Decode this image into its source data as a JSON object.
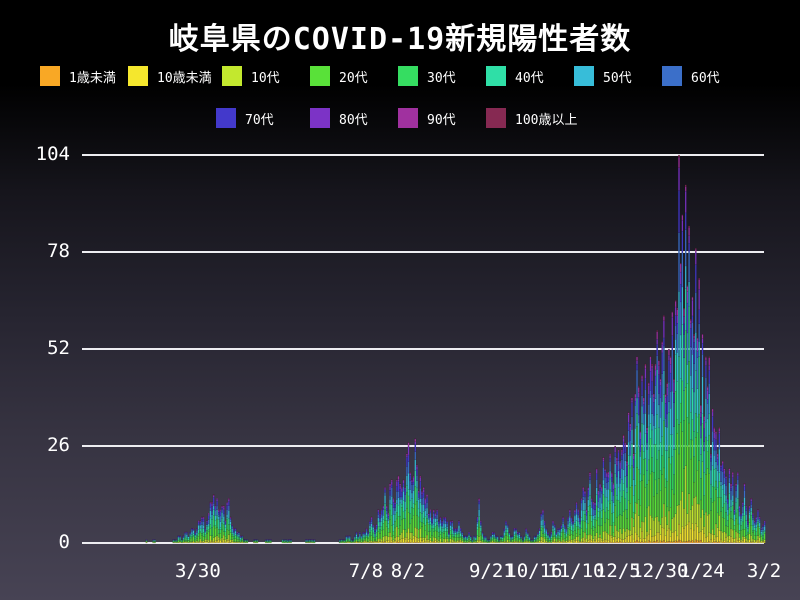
{
  "page": {
    "title": "岐阜県のCOVID-19新規陽性者数"
  },
  "colors": {
    "background_top": "#000000",
    "background_bottom": "#474354",
    "grid": "#ededf1",
    "text": "#ffffff"
  },
  "chart_data": {
    "type": "bar",
    "stacked": true,
    "title": "岐阜県のCOVID-19新規陽性者数",
    "xlabel": "",
    "ylabel": "",
    "ylim": [
      0,
      104
    ],
    "yticks": [
      104,
      78,
      52,
      26,
      0
    ],
    "grid": "horizontal",
    "legend_position": "top",
    "series": [
      {
        "name": "1歳未満",
        "color": "#f9a825"
      },
      {
        "name": "10歳未満",
        "color": "#f5e72d"
      },
      {
        "name": "10代",
        "color": "#c3e82e"
      },
      {
        "name": "20代",
        "color": "#59e139"
      },
      {
        "name": "30代",
        "color": "#35dd61"
      },
      {
        "name": "40代",
        "color": "#2fdfa7"
      },
      {
        "name": "50代",
        "color": "#37bdd9"
      },
      {
        "name": "60代",
        "color": "#3b6fc9"
      },
      {
        "name": "70代",
        "color": "#4339cb"
      },
      {
        "name": "80代",
        "color": "#7c33c6"
      },
      {
        "name": "90代",
        "color": "#a0319f"
      },
      {
        "name": "100歳以上",
        "color": "#862952"
      }
    ],
    "stack_fractions": [
      0.008,
      0.045,
      0.09,
      0.19,
      0.155,
      0.13,
      0.125,
      0.1,
      0.075,
      0.045,
      0.022,
      0.005
    ],
    "x_axis": {
      "unit": "days (daily bars)",
      "range": [
        0,
        406
      ],
      "ticks": [
        {
          "label": "3/30",
          "day": 69
        },
        {
          "label": "7/8",
          "day": 169
        },
        {
          "label": "8/2",
          "day": 194
        },
        {
          "label": "9/21",
          "day": 244
        },
        {
          "label": "10/16",
          "day": 269
        },
        {
          "label": "11/10",
          "day": 294
        },
        {
          "label": "12/5",
          "day": 319
        },
        {
          "label": "12/30",
          "day": 344
        },
        {
          "label": "1/24",
          "day": 369
        },
        {
          "label": "3/2",
          "day": 406
        }
      ]
    },
    "daily_totals_keyframes": [
      [
        0,
        0
      ],
      [
        37,
        0
      ],
      [
        38,
        1
      ],
      [
        39,
        0
      ],
      [
        43,
        1
      ],
      [
        44,
        0
      ],
      [
        52,
        0
      ],
      [
        55,
        1
      ],
      [
        57,
        2
      ],
      [
        59,
        1
      ],
      [
        61,
        3
      ],
      [
        63,
        2
      ],
      [
        65,
        4
      ],
      [
        67,
        3
      ],
      [
        69,
        5
      ],
      [
        71,
        7
      ],
      [
        73,
        5
      ],
      [
        75,
        8
      ],
      [
        77,
        10
      ],
      [
        79,
        13
      ],
      [
        81,
        9
      ],
      [
        83,
        12
      ],
      [
        85,
        8
      ],
      [
        87,
        10
      ],
      [
        88,
        6
      ],
      [
        90,
        4
      ],
      [
        92,
        3
      ],
      [
        94,
        2
      ],
      [
        96,
        1
      ],
      [
        98,
        1
      ],
      [
        100,
        0
      ],
      [
        104,
        1
      ],
      [
        105,
        0
      ],
      [
        112,
        1
      ],
      [
        113,
        0
      ],
      [
        124,
        1
      ],
      [
        125,
        0
      ],
      [
        138,
        1
      ],
      [
        139,
        0
      ],
      [
        150,
        0
      ],
      [
        155,
        1
      ],
      [
        158,
        2
      ],
      [
        160,
        1
      ],
      [
        163,
        3
      ],
      [
        166,
        2
      ],
      [
        168,
        4
      ],
      [
        170,
        3
      ],
      [
        172,
        6
      ],
      [
        174,
        5
      ],
      [
        176,
        8
      ],
      [
        178,
        7
      ],
      [
        180,
        12
      ],
      [
        182,
        9
      ],
      [
        184,
        16
      ],
      [
        186,
        12
      ],
      [
        188,
        20
      ],
      [
        190,
        15
      ],
      [
        192,
        18
      ],
      [
        194,
        24
      ],
      [
        196,
        20
      ],
      [
        198,
        23
      ],
      [
        200,
        16
      ],
      [
        202,
        12
      ],
      [
        204,
        14
      ],
      [
        206,
        10
      ],
      [
        208,
        8
      ],
      [
        210,
        10
      ],
      [
        212,
        7
      ],
      [
        214,
        5
      ],
      [
        216,
        7
      ],
      [
        218,
        4
      ],
      [
        220,
        6
      ],
      [
        222,
        3
      ],
      [
        224,
        5
      ],
      [
        226,
        3
      ],
      [
        228,
        2
      ],
      [
        230,
        3
      ],
      [
        232,
        1
      ],
      [
        234,
        2
      ],
      [
        236,
        10
      ],
      [
        237,
        5
      ],
      [
        238,
        3
      ],
      [
        240,
        2
      ],
      [
        242,
        1
      ],
      [
        244,
        3
      ],
      [
        246,
        2
      ],
      [
        248,
        1
      ],
      [
        250,
        2
      ],
      [
        252,
        5
      ],
      [
        254,
        3
      ],
      [
        256,
        2
      ],
      [
        258,
        4
      ],
      [
        260,
        2
      ],
      [
        262,
        1
      ],
      [
        264,
        3
      ],
      [
        266,
        2
      ],
      [
        268,
        1
      ],
      [
        270,
        2
      ],
      [
        272,
        4
      ],
      [
        274,
        9
      ],
      [
        275,
        5
      ],
      [
        276,
        3
      ],
      [
        278,
        2
      ],
      [
        280,
        5
      ],
      [
        282,
        3
      ],
      [
        284,
        4
      ],
      [
        286,
        6
      ],
      [
        288,
        4
      ],
      [
        290,
        8
      ],
      [
        292,
        5
      ],
      [
        294,
        10
      ],
      [
        296,
        7
      ],
      [
        298,
        13
      ],
      [
        300,
        9
      ],
      [
        302,
        15
      ],
      [
        304,
        11
      ],
      [
        306,
        17
      ],
      [
        308,
        13
      ],
      [
        310,
        21
      ],
      [
        312,
        15
      ],
      [
        314,
        24
      ],
      [
        316,
        18
      ],
      [
        318,
        27
      ],
      [
        320,
        20
      ],
      [
        322,
        31
      ],
      [
        324,
        23
      ],
      [
        326,
        35
      ],
      [
        328,
        26
      ],
      [
        330,
        41
      ],
      [
        332,
        30
      ],
      [
        334,
        45
      ],
      [
        336,
        33
      ],
      [
        338,
        51
      ],
      [
        340,
        37
      ],
      [
        342,
        47
      ],
      [
        344,
        40
      ],
      [
        346,
        55
      ],
      [
        348,
        44
      ],
      [
        350,
        60
      ],
      [
        352,
        50
      ],
      [
        354,
        72
      ],
      [
        355,
        104
      ],
      [
        356,
        66
      ],
      [
        357,
        90
      ],
      [
        358,
        58
      ],
      [
        359,
        93
      ],
      [
        360,
        68
      ],
      [
        361,
        84
      ],
      [
        362,
        54
      ],
      [
        363,
        76
      ],
      [
        364,
        47
      ],
      [
        365,
        86
      ],
      [
        366,
        56
      ],
      [
        367,
        70
      ],
      [
        368,
        44
      ],
      [
        369,
        62
      ],
      [
        370,
        38
      ],
      [
        371,
        52
      ],
      [
        372,
        33
      ],
      [
        373,
        54
      ],
      [
        374,
        29
      ],
      [
        375,
        44
      ],
      [
        376,
        25
      ],
      [
        377,
        37
      ],
      [
        378,
        21
      ],
      [
        379,
        31
      ],
      [
        380,
        17
      ],
      [
        382,
        25
      ],
      [
        384,
        14
      ],
      [
        386,
        19
      ],
      [
        388,
        11
      ],
      [
        390,
        15
      ],
      [
        392,
        9
      ],
      [
        394,
        13
      ],
      [
        396,
        7
      ],
      [
        398,
        10
      ],
      [
        400,
        5
      ],
      [
        402,
        8
      ],
      [
        404,
        4
      ],
      [
        406,
        5
      ]
    ]
  }
}
